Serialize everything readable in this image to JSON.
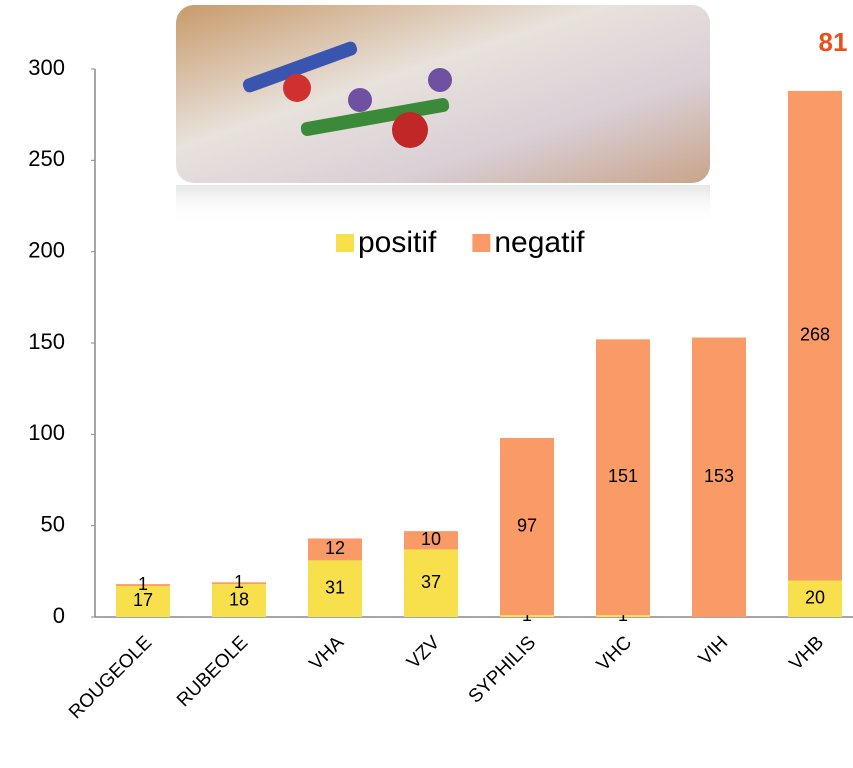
{
  "chart_data": {
    "type": "bar",
    "stacked": true,
    "annotation": "81",
    "categories": [
      "ROUGEOLE",
      "RUBEOLE",
      "VHA",
      "VZV",
      "SYPHILIS",
      "VHC",
      "VIH",
      "VHB"
    ],
    "series": [
      {
        "name": "positif",
        "color": "#f7e04b",
        "values": [
          17,
          18,
          31,
          37,
          1,
          1,
          null,
          20
        ]
      },
      {
        "name": "negatif",
        "color": "#fa9a66",
        "values": [
          1,
          1,
          12,
          10,
          97,
          151,
          153,
          268
        ]
      }
    ],
    "ylim": [
      0,
      300
    ],
    "yticks": [
      0,
      50,
      100,
      150,
      200,
      250,
      300
    ]
  }
}
